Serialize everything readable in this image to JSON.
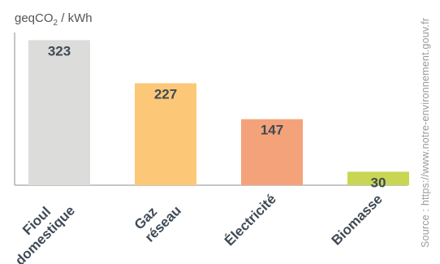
{
  "chart_data": {
    "type": "bar",
    "ylabel_base": "geqCO",
    "ylabel_sub": "2",
    "ylabel_rest": " / kWh",
    "categories": [
      {
        "lines": [
          "Fioul",
          "domestique"
        ]
      },
      {
        "lines": [
          "Gaz",
          "réseau"
        ]
      },
      {
        "lines": [
          "Électricité"
        ]
      },
      {
        "lines": [
          "Biomasse"
        ]
      }
    ],
    "values": [
      323,
      227,
      147,
      30
    ],
    "data_labels": [
      "323",
      "227",
      "147",
      "30"
    ],
    "colors": [
      "#dcdcda",
      "#fcc878",
      "#f4a27a",
      "#c8d654"
    ],
    "ylim": [
      0,
      340
    ],
    "grid": false,
    "source": "Source : https://www.notre-environnement.gouv.fr"
  }
}
